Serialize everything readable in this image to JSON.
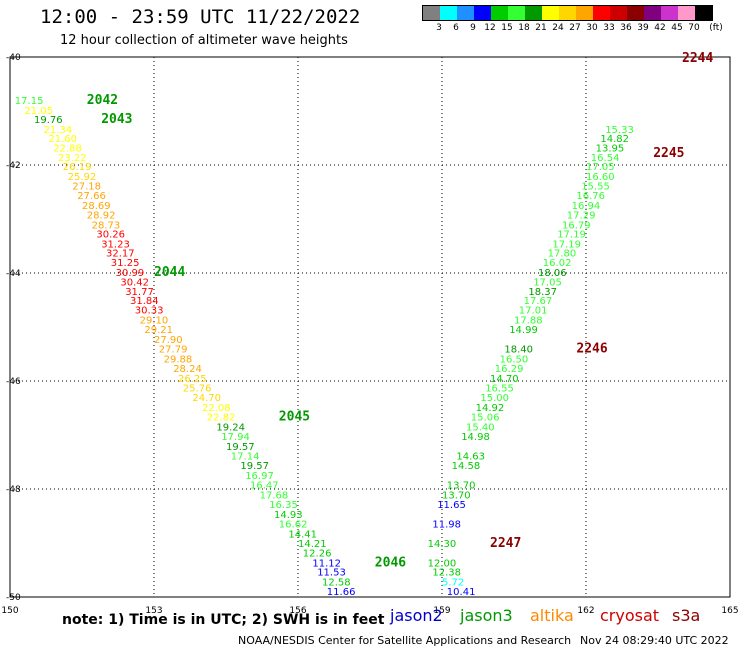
{
  "header": {
    "title": "12:00 - 23:59 UTC 11/22/2022",
    "subtitle": "12 hour collection of altimeter wave heights"
  },
  "legend": {
    "unit": "(ft)",
    "colors": [
      "#808080",
      "#00ffff",
      "#1e90ff",
      "#0000ff",
      "#00cc00",
      "#33ff33",
      "#009900",
      "#ffff00",
      "#ffd700",
      "#ffa500",
      "#ff0000",
      "#cc0000",
      "#8b0000",
      "#800080",
      "#cc33cc",
      "#ff99cc",
      "#000000"
    ],
    "labels": [
      "3",
      "6",
      "9",
      "12",
      "15",
      "18",
      "21",
      "24",
      "27",
      "30",
      "33",
      "36",
      "39",
      "42",
      "45",
      "70"
    ]
  },
  "axes": {
    "lon_range": [
      150,
      165
    ],
    "lat_range": [
      -50,
      -40
    ],
    "lon_ticks": [
      "150",
      "153",
      "156",
      "159",
      "162",
      "165"
    ],
    "lat_ticks": [
      "-40",
      "-42",
      "-44",
      "-46",
      "-48",
      "-50"
    ]
  },
  "missions": [
    {
      "name": "jason2",
      "color": "#0000cc"
    },
    {
      "name": "jason3",
      "color": "#009900"
    },
    {
      "name": "altika",
      "color": "#ff8800"
    },
    {
      "name": "cryosat",
      "color": "#cc0000"
    },
    {
      "name": "s3a",
      "color": "#8b0000"
    }
  ],
  "note": "note: 1) Time is in UTC; 2) SWH is in feet",
  "credit": "NOAA/NESDIS Center for Satellite Applications and Research",
  "credit_date": "Nov 24 08:29:40 UTC 2022",
  "tracks": [
    {
      "name": "descending-jason3",
      "points": [
        {
          "lon": 150.1,
          "lat": -40.8,
          "swh": "17.15"
        },
        {
          "lon": 150.3,
          "lat": -40.98,
          "swh": "21.05"
        },
        {
          "lon": 150.5,
          "lat": -41.15,
          "swh": "19.76"
        },
        {
          "lon": 150.7,
          "lat": -41.33,
          "swh": "21.34"
        },
        {
          "lon": 150.8,
          "lat": -41.5,
          "swh": "21.60"
        },
        {
          "lon": 150.9,
          "lat": -41.68,
          "swh": "22.88"
        },
        {
          "lon": 151.0,
          "lat": -41.85,
          "swh": "23.22"
        },
        {
          "lon": 151.1,
          "lat": -42.02,
          "swh": "26.19"
        },
        {
          "lon": 151.2,
          "lat": -42.2,
          "swh": "25.92"
        },
        {
          "lon": 151.3,
          "lat": -42.38,
          "swh": "27.18"
        },
        {
          "lon": 151.4,
          "lat": -42.56,
          "swh": "27.66"
        },
        {
          "lon": 151.5,
          "lat": -42.74,
          "swh": "28.69"
        },
        {
          "lon": 151.6,
          "lat": -42.92,
          "swh": "28.92"
        },
        {
          "lon": 151.7,
          "lat": -43.1,
          "swh": "28.73"
        },
        {
          "lon": 151.8,
          "lat": -43.27,
          "swh": "30.26"
        },
        {
          "lon": 151.9,
          "lat": -43.45,
          "swh": "31.23"
        },
        {
          "lon": 152.0,
          "lat": -43.62,
          "swh": "32.17"
        },
        {
          "lon": 152.1,
          "lat": -43.8,
          "swh": "31.25"
        },
        {
          "lon": 152.2,
          "lat": -43.98,
          "swh": "30.99"
        },
        {
          "lon": 152.3,
          "lat": -44.16,
          "swh": "30.42"
        },
        {
          "lon": 152.4,
          "lat": -44.33,
          "swh": "31.77"
        },
        {
          "lon": 152.5,
          "lat": -44.5,
          "swh": "31.84"
        },
        {
          "lon": 152.6,
          "lat": -44.68,
          "swh": "30.33"
        },
        {
          "lon": 152.7,
          "lat": -44.86,
          "swh": "29.10"
        },
        {
          "lon": 152.8,
          "lat": -45.04,
          "swh": "29.21"
        },
        {
          "lon": 153.0,
          "lat": -45.22,
          "swh": "27.90"
        },
        {
          "lon": 153.1,
          "lat": -45.4,
          "swh": "27.79"
        },
        {
          "lon": 153.2,
          "lat": -45.58,
          "swh": "29.88"
        },
        {
          "lon": 153.4,
          "lat": -45.76,
          "swh": "28.24"
        },
        {
          "lon": 153.5,
          "lat": -45.94,
          "swh": "26.25"
        },
        {
          "lon": 153.6,
          "lat": -46.12,
          "swh": "25.76"
        },
        {
          "lon": 153.8,
          "lat": -46.3,
          "swh": "24.70"
        },
        {
          "lon": 154.0,
          "lat": -46.48,
          "swh": "22.08"
        },
        {
          "lon": 154.1,
          "lat": -46.66,
          "swh": "22.82"
        },
        {
          "lon": 154.3,
          "lat": -46.84,
          "swh": "19.24"
        },
        {
          "lon": 154.4,
          "lat": -47.02,
          "swh": "17.94"
        },
        {
          "lon": 154.5,
          "lat": -47.2,
          "swh": "19.57"
        },
        {
          "lon": 154.6,
          "lat": -47.38,
          "swh": "17.14"
        },
        {
          "lon": 154.8,
          "lat": -47.56,
          "swh": "19.57"
        },
        {
          "lon": 154.9,
          "lat": -47.74,
          "swh": "16.97"
        },
        {
          "lon": 155.0,
          "lat": -47.92,
          "swh": "16.47"
        },
        {
          "lon": 155.2,
          "lat": -48.1,
          "swh": "17.68"
        },
        {
          "lon": 155.4,
          "lat": -48.28,
          "swh": "16.35"
        },
        {
          "lon": 155.5,
          "lat": -48.46,
          "swh": "14.93"
        },
        {
          "lon": 155.6,
          "lat": -48.64,
          "swh": "16.62"
        },
        {
          "lon": 155.8,
          "lat": -48.82,
          "swh": "14.41"
        },
        {
          "lon": 156.0,
          "lat": -49.0,
          "swh": "14.21"
        },
        {
          "lon": 156.1,
          "lat": -49.18,
          "swh": "12.26"
        },
        {
          "lon": 156.3,
          "lat": -49.36,
          "swh": "11.12"
        },
        {
          "lon": 156.4,
          "lat": -49.53,
          "swh": "11.53"
        },
        {
          "lon": 156.5,
          "lat": -49.71,
          "swh": "12.58"
        },
        {
          "lon": 156.6,
          "lat": -49.89,
          "swh": "11.66"
        }
      ],
      "times": [
        {
          "lon": 151.6,
          "lat": -40.8,
          "label": "2042",
          "color": "#009900"
        },
        {
          "lon": 151.9,
          "lat": -41.15,
          "label": "2043",
          "color": "#009900"
        },
        {
          "lon": 153.0,
          "lat": -43.98,
          "label": "2044",
          "color": "#009900"
        },
        {
          "lon": 155.6,
          "lat": -46.66,
          "label": "2045",
          "color": "#009900"
        },
        {
          "lon": 157.6,
          "lat": -49.36,
          "label": "2046",
          "color": "#009900"
        }
      ]
    },
    {
      "name": "ascending-cryosat",
      "points": [
        {
          "lon": 159.1,
          "lat": -49.89,
          "swh": "10.41"
        },
        {
          "lon": 159.0,
          "lat": -49.71,
          "swh": "5.72"
        },
        {
          "lon": 158.8,
          "lat": -49.53,
          "swh": "12.38"
        },
        {
          "lon": 158.7,
          "lat": -49.36,
          "swh": "12.00"
        },
        {
          "lon": 158.7,
          "lat": -49.0,
          "swh": "14.30"
        },
        {
          "lon": 158.8,
          "lat": -48.64,
          "swh": "11.98"
        },
        {
          "lon": 158.9,
          "lat": -48.28,
          "swh": "11.65"
        },
        {
          "lon": 159.0,
          "lat": -48.1,
          "swh": "13.70"
        },
        {
          "lon": 159.1,
          "lat": -47.92,
          "swh": "13.70"
        },
        {
          "lon": 159.2,
          "lat": -47.56,
          "swh": "14.58"
        },
        {
          "lon": 159.3,
          "lat": -47.38,
          "swh": "14.63"
        },
        {
          "lon": 159.4,
          "lat": -47.02,
          "swh": "14.98"
        },
        {
          "lon": 159.5,
          "lat": -46.84,
          "swh": "15.40"
        },
        {
          "lon": 159.6,
          "lat": -46.66,
          "swh": "15.06"
        },
        {
          "lon": 159.7,
          "lat": -46.48,
          "swh": "14.92"
        },
        {
          "lon": 159.8,
          "lat": -46.3,
          "swh": "15.00"
        },
        {
          "lon": 159.9,
          "lat": -46.12,
          "swh": "16.55"
        },
        {
          "lon": 160.0,
          "lat": -45.94,
          "swh": "14.70"
        },
        {
          "lon": 160.1,
          "lat": -45.76,
          "swh": "16.29"
        },
        {
          "lon": 160.2,
          "lat": -45.58,
          "swh": "16.50"
        },
        {
          "lon": 160.3,
          "lat": -45.4,
          "swh": "18.40"
        },
        {
          "lon": 160.4,
          "lat": -45.04,
          "swh": "14.99"
        },
        {
          "lon": 160.5,
          "lat": -44.86,
          "swh": "17.88"
        },
        {
          "lon": 160.6,
          "lat": -44.68,
          "swh": "17.01"
        },
        {
          "lon": 160.7,
          "lat": -44.5,
          "swh": "17.67"
        },
        {
          "lon": 160.8,
          "lat": -44.33,
          "swh": "18.37"
        },
        {
          "lon": 160.9,
          "lat": -44.16,
          "swh": "17.05"
        },
        {
          "lon": 161.0,
          "lat": -43.98,
          "swh": "18.06"
        },
        {
          "lon": 161.1,
          "lat": -43.8,
          "swh": "16.02"
        },
        {
          "lon": 161.2,
          "lat": -43.62,
          "swh": "17.80"
        },
        {
          "lon": 161.3,
          "lat": -43.45,
          "swh": "17.19"
        },
        {
          "lon": 161.4,
          "lat": -43.27,
          "swh": "17.19"
        },
        {
          "lon": 161.5,
          "lat": -43.1,
          "swh": "16.79"
        },
        {
          "lon": 161.6,
          "lat": -42.92,
          "swh": "17.29"
        },
        {
          "lon": 161.7,
          "lat": -42.74,
          "swh": "16.94"
        },
        {
          "lon": 161.8,
          "lat": -42.56,
          "swh": "16.76"
        },
        {
          "lon": 161.9,
          "lat": -42.38,
          "swh": "15.55"
        },
        {
          "lon": 162.0,
          "lat": -42.2,
          "swh": "16.60"
        },
        {
          "lon": 162.0,
          "lat": -42.02,
          "swh": "17.05"
        },
        {
          "lon": 162.1,
          "lat": -41.85,
          "swh": "16.54"
        },
        {
          "lon": 162.2,
          "lat": -41.68,
          "swh": "13.95"
        },
        {
          "lon": 162.3,
          "lat": -41.5,
          "swh": "14.82"
        },
        {
          "lon": 162.4,
          "lat": -41.33,
          "swh": "15.33"
        }
      ],
      "times": [
        {
          "lon": 164.0,
          "lat": -40.02,
          "label": "2244",
          "color": "#8b0000"
        },
        {
          "lon": 163.4,
          "lat": -41.78,
          "label": "2245",
          "color": "#8b0000"
        },
        {
          "lon": 161.8,
          "lat": -45.4,
          "label": "2246",
          "color": "#8b0000"
        },
        {
          "lon": 160.0,
          "lat": -49.0,
          "label": "2247",
          "color": "#8b0000"
        }
      ]
    }
  ]
}
